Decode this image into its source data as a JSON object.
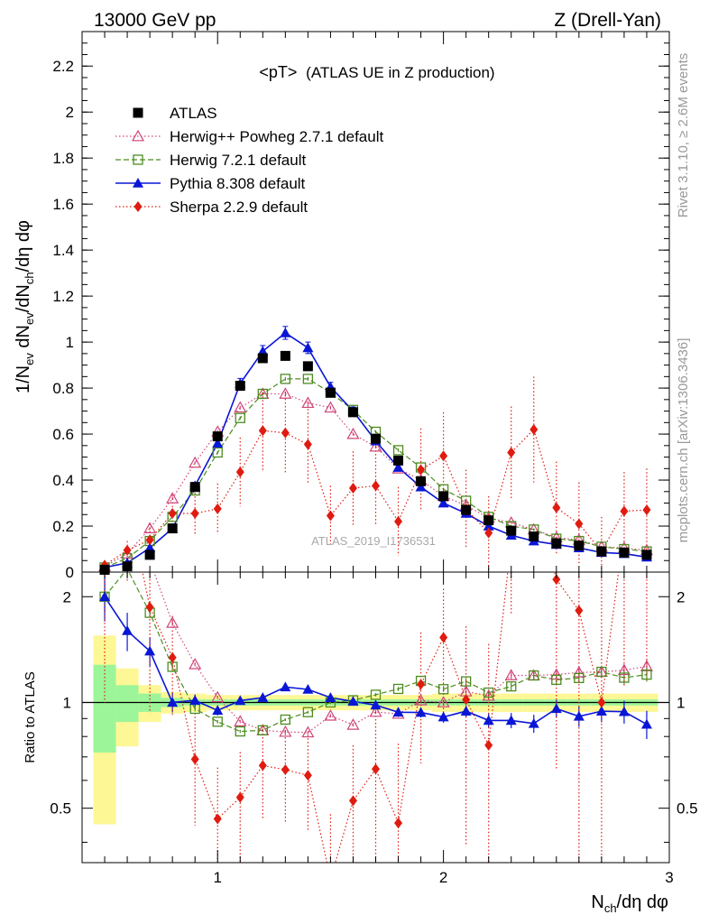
{
  "chart_data": {
    "type": "line",
    "header": {
      "left": "13000 GeV pp",
      "right": "Z (Drell-Yan)"
    },
    "title": {
      "prefix": "<pT>",
      "suffix": "(ATLAS UE in Z production)"
    },
    "side_label_rivet": "Rivet 3.1.10, ≥ 2.6M events",
    "side_label_mcplots": "mcplots.cern.ch [arXiv:1306.3436]",
    "watermark": "ATLAS_2019_I1736531",
    "main_panel": {
      "ylabel": {
        "a": "1/N",
        "a_sub": "ev",
        "b": " dN",
        "b_sub": "ev",
        "c": "/dN",
        "c_sub": "ch",
        "d": "/dη dφ"
      },
      "ylim": [
        0,
        2.35
      ],
      "yticks": [
        {
          "v": 0,
          "label": "0"
        },
        {
          "v": 0.2,
          "label": "0.2"
        },
        {
          "v": 0.4,
          "label": "0.4"
        },
        {
          "v": 0.6,
          "label": "0.6"
        },
        {
          "v": 0.8,
          "label": "0.8"
        },
        {
          "v": 1.0,
          "label": "1"
        },
        {
          "v": 1.2,
          "label": "1.2"
        },
        {
          "v": 1.4,
          "label": "1.4"
        },
        {
          "v": 1.6,
          "label": "1.6"
        },
        {
          "v": 1.8,
          "label": "1.8"
        },
        {
          "v": 2.0,
          "label": "2"
        },
        {
          "v": 2.2,
          "label": "2.2"
        }
      ]
    },
    "ratio_panel": {
      "ylabel": "Ratio to ATLAS",
      "ylim": [
        0.35,
        2.35
      ],
      "yticks": [
        {
          "v": 0.5,
          "label": "0.5"
        },
        {
          "v": 1.0,
          "label": "1"
        },
        {
          "v": 2.0,
          "label": "2"
        }
      ]
    },
    "xlabel": {
      "a": "N",
      "a_sub": "ch",
      "b": "/dη dφ"
    },
    "xlim": [
      0.4,
      3.0
    ],
    "xticks": [
      {
        "v": 1,
        "label": "1"
      },
      {
        "v": 2,
        "label": "2"
      },
      {
        "v": 3,
        "label": "3"
      }
    ],
    "x": [
      0.5,
      0.6,
      0.7,
      0.8,
      0.9,
      1.0,
      1.1,
      1.2,
      1.3,
      1.4,
      1.5,
      1.6,
      1.7,
      1.8,
      1.9,
      2.0,
      2.1,
      2.2,
      2.3,
      2.4,
      2.5,
      2.6,
      2.7,
      2.8,
      2.9
    ],
    "data": {
      "name": "ATLAS",
      "x": [
        0.5,
        0.6,
        0.7,
        0.8,
        0.9,
        1.0,
        1.1,
        1.2,
        1.3,
        1.4,
        1.5,
        1.6,
        1.7,
        1.8,
        1.9,
        2.0,
        2.1,
        2.2,
        2.3,
        2.4,
        2.5,
        2.6,
        2.7,
        2.8,
        2.9
      ],
      "values": [
        0.01,
        0.025,
        0.075,
        0.19,
        0.37,
        0.59,
        0.81,
        0.93,
        0.94,
        0.895,
        0.78,
        0.695,
        0.58,
        0.485,
        0.395,
        0.33,
        0.27,
        0.225,
        0.18,
        0.155,
        0.125,
        0.115,
        0.09,
        0.085,
        0.075
      ],
      "band_total": [
        0.55,
        0.25,
        0.12,
        0.07,
        0.06,
        0.05,
        0.05,
        0.05,
        0.05,
        0.05,
        0.05,
        0.05,
        0.05,
        0.05,
        0.05,
        0.06,
        0.06,
        0.06,
        0.06,
        0.06,
        0.06,
        0.06,
        0.06,
        0.06,
        0.06
      ],
      "band_stat": [
        0.28,
        0.12,
        0.06,
        0.03,
        0.02,
        0.02,
        0.02,
        0.02,
        0.02,
        0.02,
        0.02,
        0.02,
        0.02,
        0.02,
        0.02,
        0.02,
        0.02,
        0.02,
        0.02,
        0.02,
        0.02,
        0.02,
        0.02,
        0.02,
        0.02
      ]
    },
    "series": [
      {
        "name": "Herwig++ Powheg 2.7.1 default",
        "key": "herwigpp",
        "color": "#d0457a",
        "marker": "triangle-open",
        "dash": "1.5,2.5",
        "values": [
          0.025,
          0.08,
          0.19,
          0.32,
          0.475,
          0.61,
          0.715,
          0.775,
          0.775,
          0.735,
          0.715,
          0.6,
          0.545,
          0.45,
          0.4,
          0.33,
          0.29,
          0.235,
          0.215,
          0.185,
          0.15,
          0.14,
          0.11,
          0.105,
          0.095
        ],
        "errors": [
          0.002,
          0.004,
          0.005,
          0.006,
          0.006,
          0.007,
          0.008,
          0.008,
          0.008,
          0.008,
          0.008,
          0.007,
          0.007,
          0.007,
          0.006,
          0.006,
          0.006,
          0.005,
          0.005,
          0.005,
          0.005,
          0.004,
          0.004,
          0.004,
          0.004
        ]
      },
      {
        "name": "Herwig 7.2.1 default",
        "key": "herwig7",
        "color": "#4c8c1e",
        "marker": "square-open",
        "dash": "6,3",
        "values": [
          0.02,
          0.06,
          0.135,
          0.24,
          0.355,
          0.52,
          0.67,
          0.775,
          0.84,
          0.84,
          0.78,
          0.705,
          0.61,
          0.53,
          0.455,
          0.36,
          0.31,
          0.24,
          0.2,
          0.185,
          0.145,
          0.135,
          0.11,
          0.1,
          0.09
        ],
        "errors": [
          0.002,
          0.003,
          0.004,
          0.005,
          0.006,
          0.006,
          0.007,
          0.008,
          0.008,
          0.008,
          0.008,
          0.007,
          0.007,
          0.007,
          0.006,
          0.006,
          0.006,
          0.005,
          0.005,
          0.005,
          0.004,
          0.004,
          0.004,
          0.004,
          0.004
        ]
      },
      {
        "name": "Pythia 8.308 default",
        "key": "pythia",
        "color": "#0a16d6",
        "marker": "triangle-filled",
        "dash": "",
        "values": [
          0.02,
          0.04,
          0.105,
          0.19,
          0.375,
          0.56,
          0.82,
          0.96,
          1.04,
          0.975,
          0.805,
          0.7,
          0.57,
          0.455,
          0.37,
          0.3,
          0.255,
          0.2,
          0.16,
          0.135,
          0.12,
          0.105,
          0.085,
          0.08,
          0.065
        ],
        "errors": [
          0.003,
          0.005,
          0.01,
          0.012,
          0.015,
          0.018,
          0.022,
          0.025,
          0.028,
          0.025,
          0.02,
          0.018,
          0.016,
          0.014,
          0.012,
          0.011,
          0.01,
          0.009,
          0.008,
          0.008,
          0.007,
          0.007,
          0.006,
          0.006,
          0.006
        ]
      },
      {
        "name": "Sherpa 2.2.9 default",
        "key": "sherpa",
        "color": "#e01b10",
        "marker": "diamond-filled",
        "dash": "1.5,2.5",
        "values": [
          0.03,
          0.095,
          0.14,
          0.255,
          0.255,
          0.275,
          0.435,
          0.615,
          0.605,
          0.555,
          0.245,
          0.365,
          0.375,
          0.22,
          0.445,
          0.505,
          0.275,
          0.17,
          0.52,
          0.62,
          0.28,
          0.21,
          0.09,
          0.265,
          0.27
        ],
        "errors": [
          0.02,
          0.04,
          0.07,
          0.08,
          0.09,
          0.11,
          0.15,
          0.18,
          0.18,
          0.17,
          0.13,
          0.16,
          0.17,
          0.15,
          0.18,
          0.19,
          0.17,
          0.16,
          0.2,
          0.23,
          0.2,
          0.18,
          0.15,
          0.17,
          0.18
        ]
      }
    ]
  }
}
